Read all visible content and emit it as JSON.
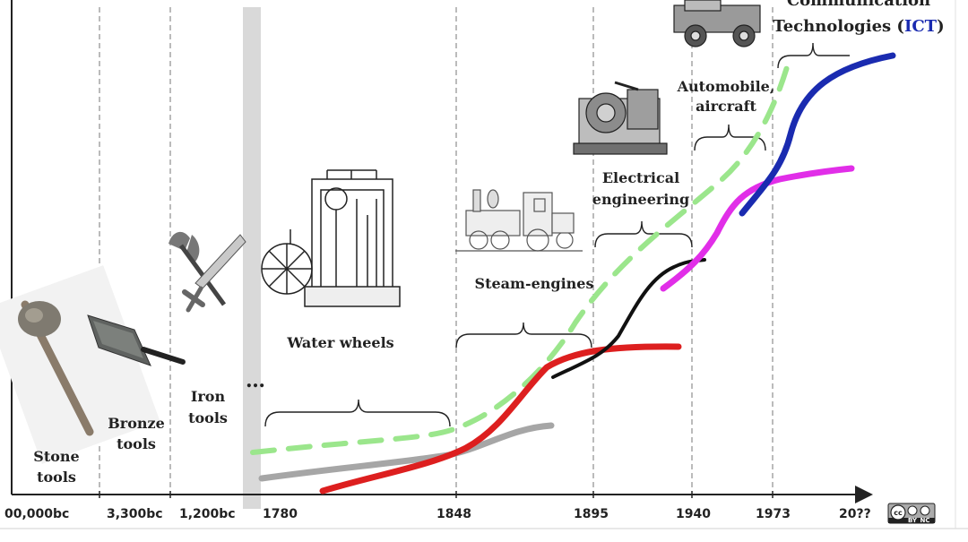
{
  "timeline": {
    "ticks": [
      "00,000bc",
      "3,300bc",
      "1,200bc",
      "1780",
      "1848",
      "1895",
      "1940",
      "1973",
      "20??"
    ],
    "ellipsis": "…"
  },
  "eras": {
    "stone": [
      "Stone",
      "tools"
    ],
    "bronze": [
      "Bronze",
      "tools"
    ],
    "iron": [
      "Iron",
      "tools"
    ],
    "water": "Water wheels",
    "steam": "Steam-engines",
    "electrical": [
      "Electrical",
      "engineering"
    ],
    "automobile": [
      "Automobile,",
      "aircraft"
    ],
    "ict": {
      "top_line": "Communication",
      "prefix": "Technologies (",
      "abbr": "ICT",
      "suffix": ")"
    }
  },
  "license": {
    "badge": "cc",
    "labels": [
      "BY",
      "NC"
    ]
  },
  "colors": {
    "water": "#a6a6a6",
    "steam": "#dd1f1f",
    "electrical": "#111111",
    "automobile": "#e12ee8",
    "ict": "#1a2bb0",
    "trend": "#9be68c",
    "divider": "#777777"
  },
  "icons": [
    "stone-axe-icon",
    "bronze-axe-icon",
    "iron-weapons-icon",
    "water-frame-icon",
    "locomotive-icon",
    "electric-generator-icon",
    "vintage-car-icon",
    "creative-commons-icon"
  ]
}
